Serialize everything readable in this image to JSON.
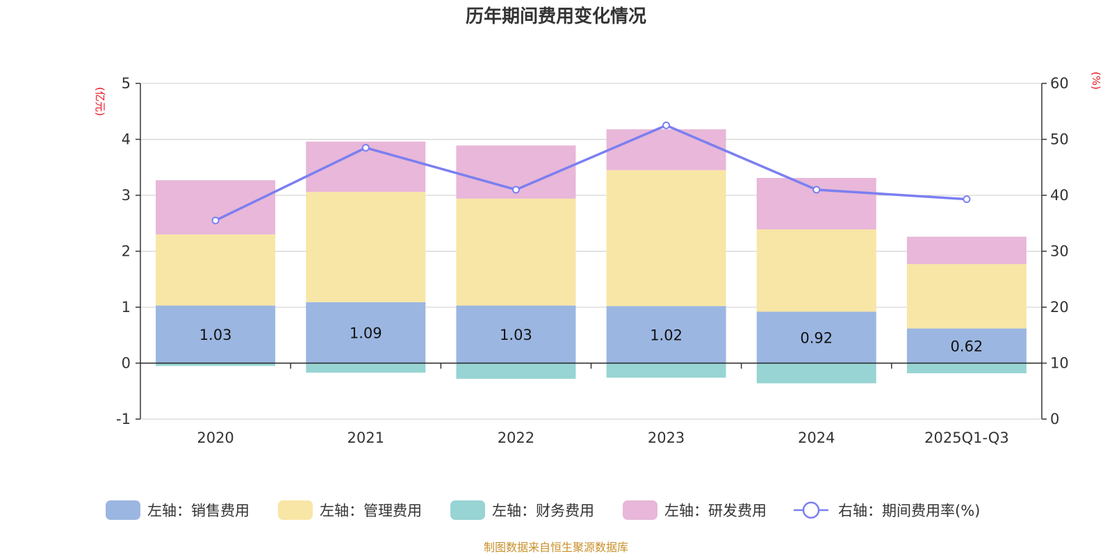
{
  "chart_data": {
    "type": "bar",
    "title": "历年期间费用变化情况",
    "categories": [
      "2020",
      "2021",
      "2022",
      "2023",
      "2024",
      "2025Q1-Q3"
    ],
    "left_axis": {
      "unit": "(亿元)",
      "ylim": [
        -1,
        5
      ],
      "ticks": [
        -1,
        0,
        1,
        2,
        3,
        4,
        5
      ]
    },
    "right_axis": {
      "unit": "(%)",
      "ylim": [
        0,
        60
      ],
      "ticks": [
        0,
        10,
        20,
        30,
        40,
        50,
        60
      ]
    },
    "series": [
      {
        "name": "左轴：销售费用",
        "axis": "left",
        "type": "bar",
        "color": "#9bb6e1",
        "values": [
          1.03,
          1.09,
          1.03,
          1.02,
          0.92,
          0.62
        ],
        "labels": [
          "1.03",
          "1.09",
          "1.03",
          "1.02",
          "0.92",
          "0.62"
        ]
      },
      {
        "name": "左轴：管理费用",
        "axis": "left",
        "type": "bar",
        "color": "#f8e6a6",
        "values": [
          1.27,
          1.97,
          1.91,
          2.43,
          1.47,
          1.15
        ]
      },
      {
        "name": "左轴：财务费用",
        "axis": "left",
        "type": "bar",
        "color": "#97d4d3",
        "values": [
          -0.05,
          -0.17,
          -0.28,
          -0.26,
          -0.36,
          -0.18
        ]
      },
      {
        "name": "左轴：研发费用",
        "axis": "left",
        "type": "bar",
        "color": "#e8b7d9",
        "values": [
          0.97,
          0.9,
          0.95,
          0.73,
          0.92,
          0.49
        ]
      },
      {
        "name": "右轴：期间费用率(%)",
        "axis": "right",
        "type": "line",
        "color": "#7b7ff0",
        "values": [
          35.5,
          48.5,
          41.0,
          52.5,
          41.0,
          39.3
        ]
      }
    ],
    "legend_position": "bottom",
    "grid": true
  },
  "footer": {
    "source": "制图数据来自恒生聚源数据库"
  }
}
